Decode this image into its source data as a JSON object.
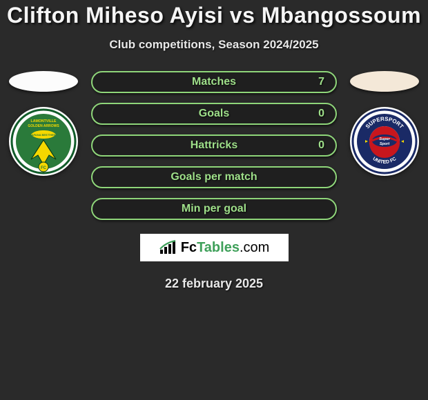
{
  "title": "Clifton Miheso Ayisi vs Mbangossoum",
  "subtitle": "Club competitions, Season 2024/2025",
  "date": "22 february 2025",
  "logo": {
    "fc": "Fc",
    "tables": "Tables",
    "com": ".com"
  },
  "colors": {
    "bar_border": "#8fd67a",
    "bar_fill_green": "#5aa844",
    "bar_fill_darkgreen": "#3f7a30",
    "bar_bg": "rgba(0,0,0,0.25)",
    "pct_font": "#9fe08a"
  },
  "stats": [
    {
      "label": "Matches",
      "value": "7",
      "fill_pct": 0,
      "show_value": true
    },
    {
      "label": "Goals",
      "value": "0",
      "fill_pct": 0,
      "show_value": true
    },
    {
      "label": "Hattricks",
      "value": "0",
      "fill_pct": 0,
      "show_value": true
    },
    {
      "label": "Goals per match",
      "value": "",
      "fill_pct": 0,
      "show_value": false
    },
    {
      "label": "Min per goal",
      "value": "",
      "fill_pct": 0,
      "show_value": false
    }
  ],
  "left_club": {
    "name": "Lamontville Golden Arrows",
    "badge_bg": "#ffffff",
    "badge_inner": "#2a7a3a",
    "badge_accent": "#f5d800"
  },
  "right_club": {
    "name": "SuperSport United FC",
    "badge_bg": "#ffffff",
    "badge_inner": "#1a2a66",
    "badge_accent": "#c8161d"
  }
}
